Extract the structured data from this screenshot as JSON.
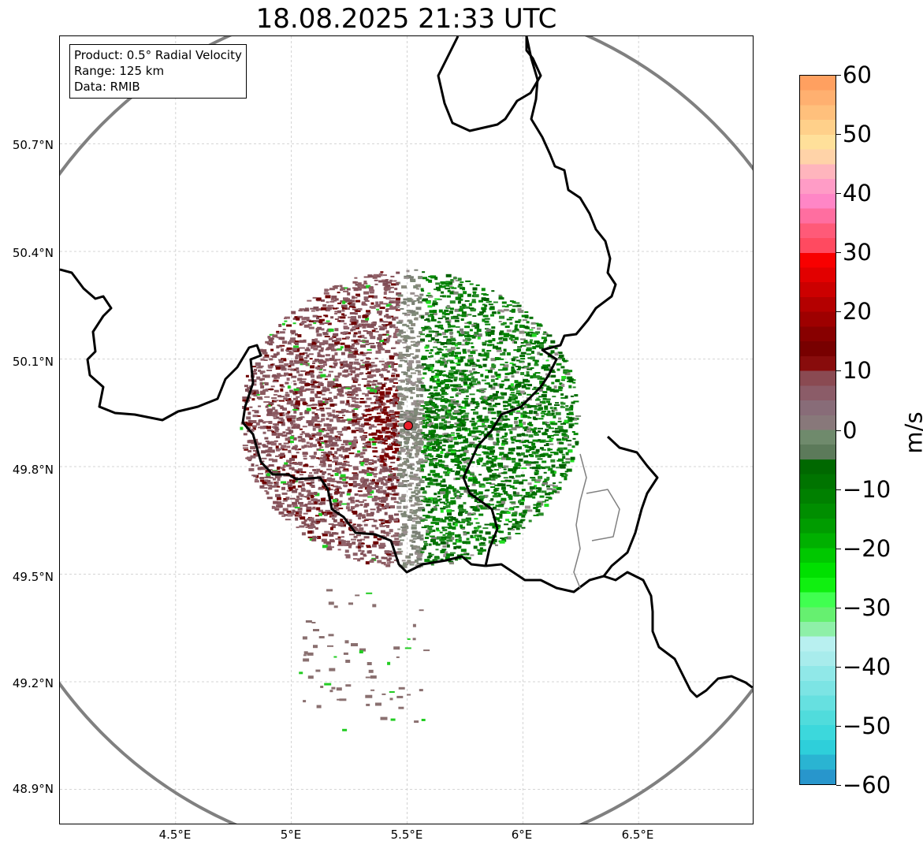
{
  "title": "18.08.2025 21:33 UTC",
  "info_box": {
    "product": "Product: 0.5° Radial Velocity",
    "range": "Range: 125 km",
    "data": "Data: RMIB"
  },
  "map": {
    "lon_range": [
      4.0,
      7.0
    ],
    "lat_range": [
      48.8,
      51.0
    ],
    "radar_site": {
      "lon": 5.505,
      "lat": 49.914
    },
    "range_km": 125,
    "lat_labels": [
      "50.7°N",
      "50.4°N",
      "50.1°N",
      "49.8°N",
      "49.5°N",
      "49.2°N",
      "48.9°N"
    ],
    "lon_labels": [
      "4.5°E",
      "5°E",
      "5.5°E",
      "6°E",
      "6.5°E"
    ],
    "gridlines": true,
    "colors": {
      "range_ring": "#808080",
      "national_border": "#000000",
      "regional_border": "#808080",
      "radar_marker": "#e8202a",
      "receding_dark_red": "#7a0000",
      "background_maroon": "#8a5a60",
      "near_zero_gray": "#8c8c80",
      "approaching_green": "#008000"
    }
  },
  "colorbar": {
    "label": "m/s",
    "min": -60,
    "max": 60,
    "tick_labels": [
      "60",
      "50",
      "40",
      "30",
      "20",
      "10",
      "0",
      "−10",
      "−20",
      "−30",
      "−40",
      "−50",
      "−60"
    ],
    "colors_top_to_bottom": [
      "#ffa060",
      "#ffb070",
      "#ffc07c",
      "#ffd08a",
      "#ffe09a",
      "#ffd3a8",
      "#ffb5bd",
      "#ff9cc6",
      "#ff86c6",
      "#ff6ea0",
      "#ff5a78",
      "#ff4a60",
      "#f80000",
      "#e20000",
      "#cc0000",
      "#b40000",
      "#9e0000",
      "#880000",
      "#780000",
      "#880c0c",
      "#8a4a52",
      "#8b5c68",
      "#886c78",
      "#88787a",
      "#6f8a6c",
      "#5c7a5a",
      "#006800",
      "#007400",
      "#008000",
      "#008e00",
      "#009c00",
      "#00b000",
      "#00c800",
      "#00e000",
      "#10f010",
      "#40ff50",
      "#66f070",
      "#8ef0a8",
      "#b8f0f0",
      "#a8ecec",
      "#90e8e8",
      "#7ce4e4",
      "#66e0e0",
      "#50dcdc",
      "#3cd8dc",
      "#2ecfda",
      "#2ab4d2",
      "#2896cc"
    ]
  }
}
